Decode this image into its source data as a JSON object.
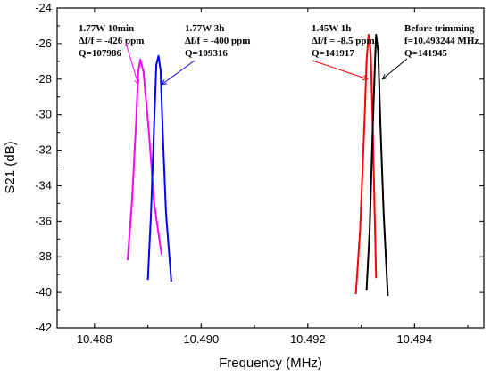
{
  "chart_data": {
    "type": "line",
    "xlabel": "Frequency (MHz)",
    "ylabel": "S21 (dB)",
    "xlim": [
      10.4873,
      10.4953
    ],
    "ylim": [
      -42,
      -24
    ],
    "xticks": [
      10.488,
      10.49,
      10.492,
      10.494
    ],
    "xtick_labels": [
      "10.488",
      "10.490",
      "10.492",
      "10.494"
    ],
    "yticks": [
      -24,
      -26,
      -28,
      -30,
      -32,
      -34,
      -36,
      -38,
      -40,
      -42
    ],
    "ytick_labels": [
      "-24",
      "-26",
      "-28",
      "-30",
      "-32",
      "-34",
      "-36",
      "-38",
      "-40",
      "-42"
    ],
    "grid": false,
    "series": [
      {
        "color": "#ff00ff",
        "x": [
          10.48862,
          10.4887,
          10.48878,
          10.48882,
          10.48886,
          10.48892,
          10.48902,
          10.48912,
          10.48926
        ],
        "y": [
          -38.2,
          -35.0,
          -30.5,
          -27.6,
          -26.9,
          -27.6,
          -31.0,
          -35.0,
          -37.9
        ]
      },
      {
        "color": "#0000ff",
        "x": [
          10.489,
          10.48906,
          10.48912,
          10.48916,
          10.4892,
          10.48924,
          10.48928,
          10.48934,
          10.48944
        ],
        "y": [
          -39.3,
          -35.5,
          -30.5,
          -27.2,
          -26.7,
          -27.5,
          -31.0,
          -35.5,
          -39.4
        ]
      },
      {
        "color": "#ff0000",
        "x": [
          10.4929,
          10.49298,
          10.49306,
          10.4931,
          10.49314,
          10.49318,
          10.49322,
          10.49328
        ],
        "y": [
          -40.1,
          -36.5,
          -30.5,
          -27.0,
          -25.5,
          -26.5,
          -31.0,
          -39.2
        ]
      },
      {
        "color": "#000000",
        "x": [
          10.4931,
          10.49316,
          10.49322,
          10.49326,
          10.49328,
          10.49332,
          10.49336,
          10.49342,
          10.4935
        ],
        "y": [
          -39.9,
          -36.5,
          -30.5,
          -27.0,
          -25.5,
          -26.5,
          -30.5,
          -35.5,
          -40.2
        ]
      }
    ],
    "annotations": [
      {
        "lines": [
          "1.77W 10min",
          "Δf/f = -426 ppm",
          "Q=107986"
        ],
        "arrow_color": "#ff00ff",
        "point": [
          10.48882,
          -28.3
        ]
      },
      {
        "lines": [
          "1.77W 3h",
          "Δf/f = -400 ppm",
          "Q=109316"
        ],
        "arrow_color": "#0000ff",
        "point": [
          10.48926,
          -28.3
        ]
      },
      {
        "lines": [
          "1.45W 1h",
          "Δf/f = -8.5 ppm",
          "Q=141917"
        ],
        "arrow_color": "#ff0000",
        "point": [
          10.49312,
          -28.0
        ]
      },
      {
        "lines": [
          "Before trimming",
          "f=10.493244 MHz",
          "Q=141945"
        ],
        "arrow_color": "#000000",
        "point": [
          10.4934,
          -28.0
        ]
      }
    ]
  }
}
